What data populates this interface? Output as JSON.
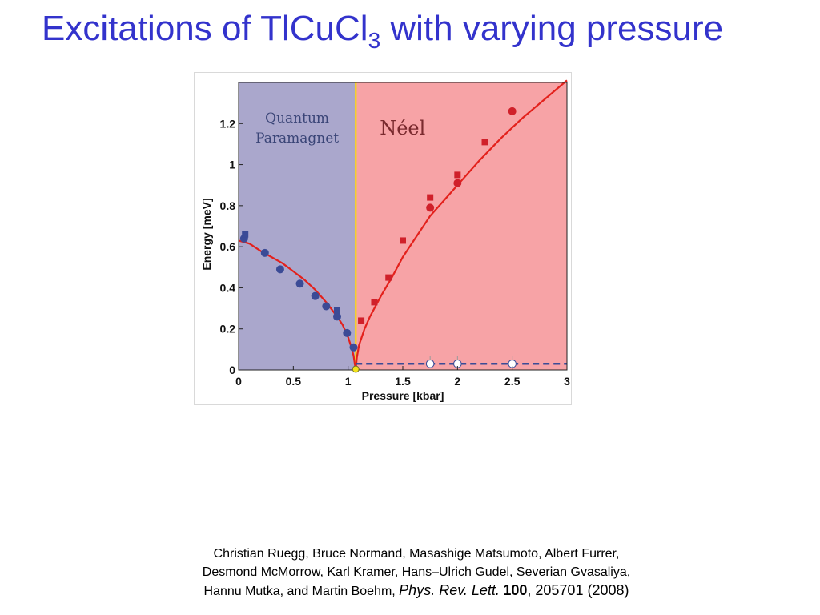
{
  "slide": {
    "title_main": "Excitations of TlCuCl",
    "title_subscript": "3",
    "title_rest": " with varying pressure"
  },
  "citation": {
    "line1": "Christian Ruegg, Bruce Normand, Masashige Matsumoto, Albert Furrer,",
    "line2": "Desmond McMorrow, Karl Kramer, Hans–Ulrich Gudel, Severian Gvasaliya,",
    "line3_authors": "Hannu Mutka, and Martin Boehm, ",
    "journal": "Phys. Rev. Lett.",
    "volume": "100",
    "pages": ", 205701",
    "year": " (2008)"
  },
  "chart_data": {
    "type": "scatter",
    "title": "",
    "xlabel": "Pressure [kbar]",
    "ylabel": "Energy [meV]",
    "xlim": [
      0,
      3
    ],
    "ylim": [
      0,
      1.4
    ],
    "xticks": [
      0,
      0.5,
      1,
      1.5,
      2,
      2.5,
      3
    ],
    "xtick_labels": [
      "0",
      "0.5",
      "1",
      "1.5",
      "2",
      "2.5",
      "3"
    ],
    "yticks": [
      0,
      0.2,
      0.4,
      0.6,
      0.8,
      1.0,
      1.2
    ],
    "ytick_labels": [
      "0",
      "0.2",
      "0.4",
      "0.6",
      "0.8",
      "1",
      "1.2"
    ],
    "grid": false,
    "critical_pressure": 1.07,
    "regions": [
      {
        "label_lines": [
          "Quantum",
          "Paramagnet"
        ],
        "x_from": 0,
        "x_to": 1.07,
        "color": "#aaa7cc"
      },
      {
        "label_lines": [
          "Néel"
        ],
        "x_from": 1.07,
        "x_to": 3,
        "color": "#f7a3a6"
      }
    ],
    "colors": {
      "paramagnet_points": "#3b4b96",
      "neel_points": "#d0202a",
      "fit_curve": "#e3211c",
      "dashed_line": "#3b4b96",
      "critical_line": "#f2cf2f",
      "critical_point": "#f2e31a",
      "open_points": "#ffffff"
    },
    "series": [
      {
        "marker": "circle",
        "color": "#3b4b96",
        "x": [
          0.05,
          0.24,
          0.38,
          0.56,
          0.7,
          0.8,
          0.9,
          0.99,
          1.05
        ],
        "y": [
          0.64,
          0.57,
          0.49,
          0.42,
          0.36,
          0.31,
          0.26,
          0.18,
          0.11
        ]
      },
      {
        "marker": "square",
        "color": "#3b4b96",
        "x": [
          0.06,
          0.9
        ],
        "y": [
          0.66,
          0.29
        ]
      },
      {
        "marker": "square",
        "color": "#d0202a",
        "x": [
          1.12,
          1.24,
          1.37,
          1.5,
          1.75,
          2.0,
          2.25
        ],
        "y": [
          0.24,
          0.33,
          0.45,
          0.63,
          0.84,
          0.95,
          1.11
        ]
      },
      {
        "marker": "circle",
        "color": "#d0202a",
        "x": [
          1.75,
          2.0,
          2.5
        ],
        "y": [
          0.79,
          0.91,
          1.26
        ]
      },
      {
        "marker": "open-circle",
        "color": "#ffffff",
        "x": [
          1.75,
          2.0,
          2.5
        ],
        "y": [
          0.03,
          0.03,
          0.03
        ]
      }
    ],
    "fits": [
      {
        "style": "solid",
        "color": "#e3211c",
        "x": [
          0.0,
          0.1,
          0.2,
          0.3,
          0.4,
          0.5,
          0.6,
          0.7,
          0.8,
          0.9,
          0.95,
          1.0,
          1.03,
          1.05,
          1.07
        ],
        "y": [
          0.63,
          0.615,
          0.58,
          0.55,
          0.52,
          0.48,
          0.44,
          0.39,
          0.33,
          0.26,
          0.22,
          0.16,
          0.11,
          0.07,
          0.0
        ]
      },
      {
        "style": "solid",
        "color": "#e3211c",
        "x": [
          1.07,
          1.08,
          1.1,
          1.15,
          1.2,
          1.3,
          1.4,
          1.5,
          1.6,
          1.75,
          1.9,
          2.0,
          2.2,
          2.4,
          2.6,
          2.8,
          3.0
        ],
        "y": [
          0.0,
          0.06,
          0.12,
          0.2,
          0.26,
          0.36,
          0.45,
          0.55,
          0.63,
          0.75,
          0.84,
          0.9,
          1.02,
          1.13,
          1.23,
          1.32,
          1.41
        ]
      },
      {
        "style": "dashed",
        "color": "#3b4b96",
        "x": [
          1.07,
          3.0
        ],
        "y": [
          0.03,
          0.03
        ]
      }
    ]
  }
}
